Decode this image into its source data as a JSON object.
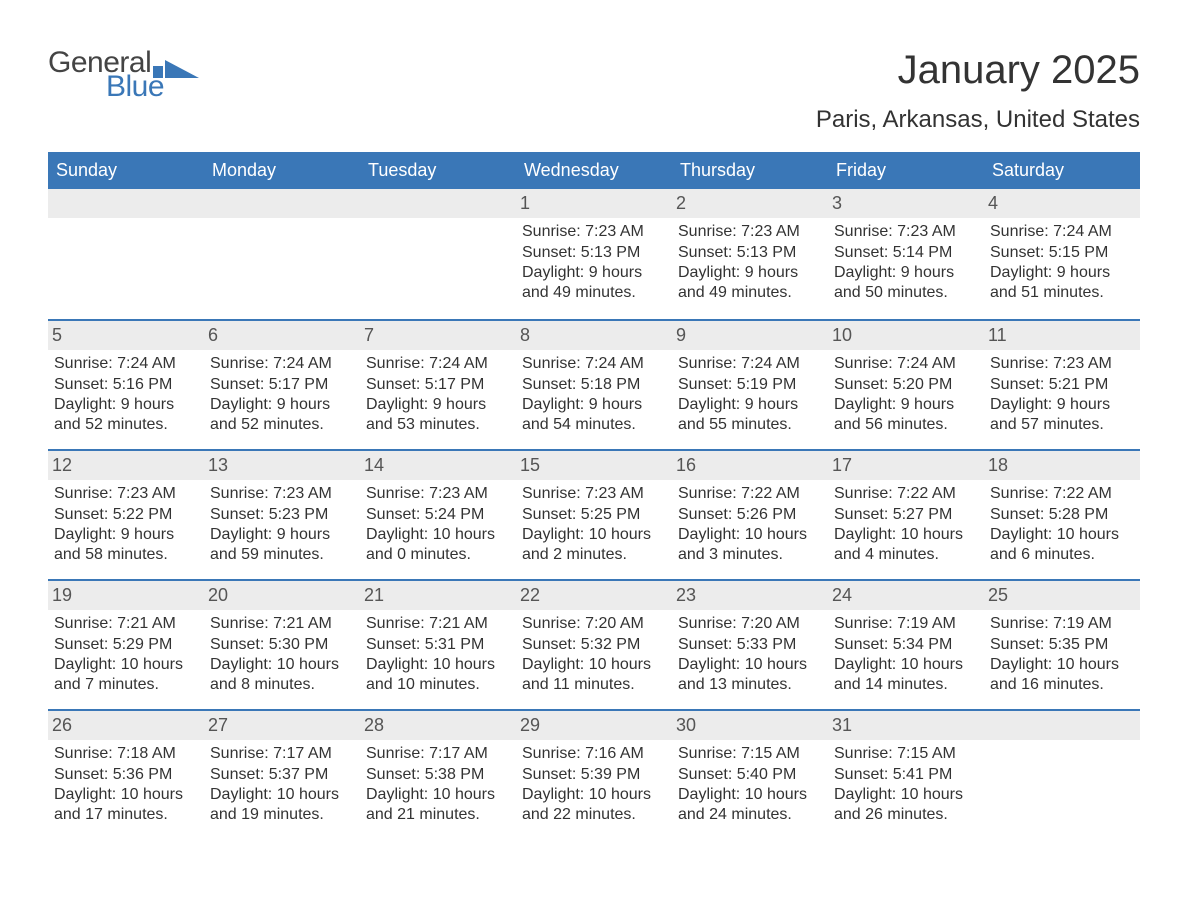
{
  "brand": {
    "part1": "General",
    "part2": "Blue",
    "logo_color": "#3a77b7",
    "text_color": "#444444"
  },
  "header": {
    "month_title": "January 2025",
    "location": "Paris, Arkansas, United States"
  },
  "colors": {
    "header_bg": "#3a77b7",
    "header_text": "#ffffff",
    "daynum_bg": "#ececec",
    "daynum_text": "#555555",
    "body_text": "#333333",
    "week_border": "#3a77b7",
    "page_bg": "#ffffff"
  },
  "typography": {
    "month_title_fontsize": 40,
    "location_fontsize": 24,
    "dow_fontsize": 18,
    "daynum_fontsize": 18,
    "body_fontsize": 16,
    "font_family": "Arial"
  },
  "days_of_week": [
    "Sunday",
    "Monday",
    "Tuesday",
    "Wednesday",
    "Thursday",
    "Friday",
    "Saturday"
  ],
  "weeks": [
    [
      {
        "n": "",
        "sunrise": "",
        "sunset": "",
        "d1": "",
        "d2": ""
      },
      {
        "n": "",
        "sunrise": "",
        "sunset": "",
        "d1": "",
        "d2": ""
      },
      {
        "n": "",
        "sunrise": "",
        "sunset": "",
        "d1": "",
        "d2": ""
      },
      {
        "n": "1",
        "sunrise": "Sunrise: 7:23 AM",
        "sunset": "Sunset: 5:13 PM",
        "d1": "Daylight: 9 hours",
        "d2": "and 49 minutes."
      },
      {
        "n": "2",
        "sunrise": "Sunrise: 7:23 AM",
        "sunset": "Sunset: 5:13 PM",
        "d1": "Daylight: 9 hours",
        "d2": "and 49 minutes."
      },
      {
        "n": "3",
        "sunrise": "Sunrise: 7:23 AM",
        "sunset": "Sunset: 5:14 PM",
        "d1": "Daylight: 9 hours",
        "d2": "and 50 minutes."
      },
      {
        "n": "4",
        "sunrise": "Sunrise: 7:24 AM",
        "sunset": "Sunset: 5:15 PM",
        "d1": "Daylight: 9 hours",
        "d2": "and 51 minutes."
      }
    ],
    [
      {
        "n": "5",
        "sunrise": "Sunrise: 7:24 AM",
        "sunset": "Sunset: 5:16 PM",
        "d1": "Daylight: 9 hours",
        "d2": "and 52 minutes."
      },
      {
        "n": "6",
        "sunrise": "Sunrise: 7:24 AM",
        "sunset": "Sunset: 5:17 PM",
        "d1": "Daylight: 9 hours",
        "d2": "and 52 minutes."
      },
      {
        "n": "7",
        "sunrise": "Sunrise: 7:24 AM",
        "sunset": "Sunset: 5:17 PM",
        "d1": "Daylight: 9 hours",
        "d2": "and 53 minutes."
      },
      {
        "n": "8",
        "sunrise": "Sunrise: 7:24 AM",
        "sunset": "Sunset: 5:18 PM",
        "d1": "Daylight: 9 hours",
        "d2": "and 54 minutes."
      },
      {
        "n": "9",
        "sunrise": "Sunrise: 7:24 AM",
        "sunset": "Sunset: 5:19 PM",
        "d1": "Daylight: 9 hours",
        "d2": "and 55 minutes."
      },
      {
        "n": "10",
        "sunrise": "Sunrise: 7:24 AM",
        "sunset": "Sunset: 5:20 PM",
        "d1": "Daylight: 9 hours",
        "d2": "and 56 minutes."
      },
      {
        "n": "11",
        "sunrise": "Sunrise: 7:23 AM",
        "sunset": "Sunset: 5:21 PM",
        "d1": "Daylight: 9 hours",
        "d2": "and 57 minutes."
      }
    ],
    [
      {
        "n": "12",
        "sunrise": "Sunrise: 7:23 AM",
        "sunset": "Sunset: 5:22 PM",
        "d1": "Daylight: 9 hours",
        "d2": "and 58 minutes."
      },
      {
        "n": "13",
        "sunrise": "Sunrise: 7:23 AM",
        "sunset": "Sunset: 5:23 PM",
        "d1": "Daylight: 9 hours",
        "d2": "and 59 minutes."
      },
      {
        "n": "14",
        "sunrise": "Sunrise: 7:23 AM",
        "sunset": "Sunset: 5:24 PM",
        "d1": "Daylight: 10 hours",
        "d2": "and 0 minutes."
      },
      {
        "n": "15",
        "sunrise": "Sunrise: 7:23 AM",
        "sunset": "Sunset: 5:25 PM",
        "d1": "Daylight: 10 hours",
        "d2": "and 2 minutes."
      },
      {
        "n": "16",
        "sunrise": "Sunrise: 7:22 AM",
        "sunset": "Sunset: 5:26 PM",
        "d1": "Daylight: 10 hours",
        "d2": "and 3 minutes."
      },
      {
        "n": "17",
        "sunrise": "Sunrise: 7:22 AM",
        "sunset": "Sunset: 5:27 PM",
        "d1": "Daylight: 10 hours",
        "d2": "and 4 minutes."
      },
      {
        "n": "18",
        "sunrise": "Sunrise: 7:22 AM",
        "sunset": "Sunset: 5:28 PM",
        "d1": "Daylight: 10 hours",
        "d2": "and 6 minutes."
      }
    ],
    [
      {
        "n": "19",
        "sunrise": "Sunrise: 7:21 AM",
        "sunset": "Sunset: 5:29 PM",
        "d1": "Daylight: 10 hours",
        "d2": "and 7 minutes."
      },
      {
        "n": "20",
        "sunrise": "Sunrise: 7:21 AM",
        "sunset": "Sunset: 5:30 PM",
        "d1": "Daylight: 10 hours",
        "d2": "and 8 minutes."
      },
      {
        "n": "21",
        "sunrise": "Sunrise: 7:21 AM",
        "sunset": "Sunset: 5:31 PM",
        "d1": "Daylight: 10 hours",
        "d2": "and 10 minutes."
      },
      {
        "n": "22",
        "sunrise": "Sunrise: 7:20 AM",
        "sunset": "Sunset: 5:32 PM",
        "d1": "Daylight: 10 hours",
        "d2": "and 11 minutes."
      },
      {
        "n": "23",
        "sunrise": "Sunrise: 7:20 AM",
        "sunset": "Sunset: 5:33 PM",
        "d1": "Daylight: 10 hours",
        "d2": "and 13 minutes."
      },
      {
        "n": "24",
        "sunrise": "Sunrise: 7:19 AM",
        "sunset": "Sunset: 5:34 PM",
        "d1": "Daylight: 10 hours",
        "d2": "and 14 minutes."
      },
      {
        "n": "25",
        "sunrise": "Sunrise: 7:19 AM",
        "sunset": "Sunset: 5:35 PM",
        "d1": "Daylight: 10 hours",
        "d2": "and 16 minutes."
      }
    ],
    [
      {
        "n": "26",
        "sunrise": "Sunrise: 7:18 AM",
        "sunset": "Sunset: 5:36 PM",
        "d1": "Daylight: 10 hours",
        "d2": "and 17 minutes."
      },
      {
        "n": "27",
        "sunrise": "Sunrise: 7:17 AM",
        "sunset": "Sunset: 5:37 PM",
        "d1": "Daylight: 10 hours",
        "d2": "and 19 minutes."
      },
      {
        "n": "28",
        "sunrise": "Sunrise: 7:17 AM",
        "sunset": "Sunset: 5:38 PM",
        "d1": "Daylight: 10 hours",
        "d2": "and 21 minutes."
      },
      {
        "n": "29",
        "sunrise": "Sunrise: 7:16 AM",
        "sunset": "Sunset: 5:39 PM",
        "d1": "Daylight: 10 hours",
        "d2": "and 22 minutes."
      },
      {
        "n": "30",
        "sunrise": "Sunrise: 7:15 AM",
        "sunset": "Sunset: 5:40 PM",
        "d1": "Daylight: 10 hours",
        "d2": "and 24 minutes."
      },
      {
        "n": "31",
        "sunrise": "Sunrise: 7:15 AM",
        "sunset": "Sunset: 5:41 PM",
        "d1": "Daylight: 10 hours",
        "d2": "and 26 minutes."
      },
      {
        "n": "",
        "sunrise": "",
        "sunset": "",
        "d1": "",
        "d2": ""
      }
    ]
  ]
}
